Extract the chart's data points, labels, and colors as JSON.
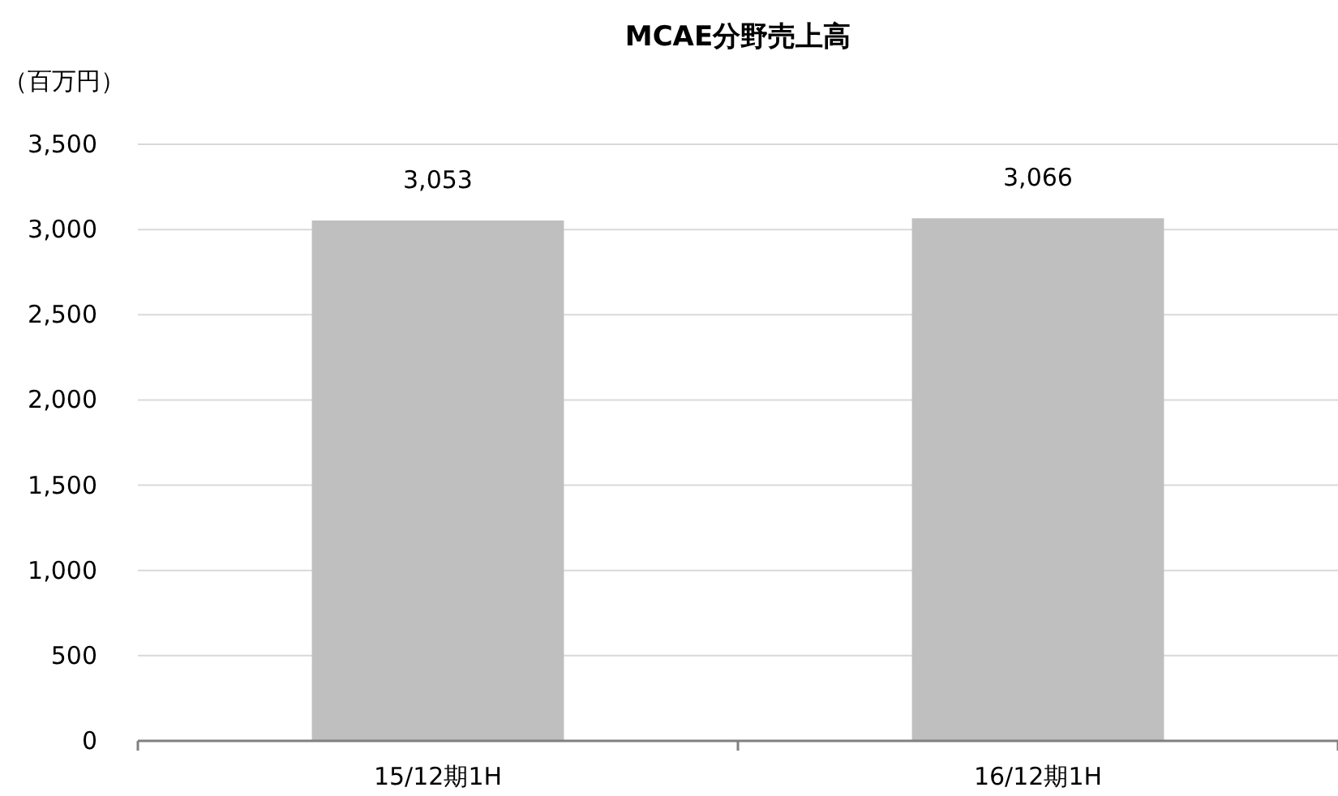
{
  "chart_data": {
    "type": "bar",
    "title": "MCAE分野売上高",
    "ylabel": "（百万円）",
    "categories": [
      "15/12期1H",
      "16/12期1H"
    ],
    "values": [
      3053,
      3066
    ],
    "color": "#bfbfbf",
    "ylim": [
      0,
      3500
    ],
    "yticks": [
      {
        "value": 0,
        "label": "0"
      },
      {
        "value": 500,
        "label": "500"
      },
      {
        "value": 1000,
        "label": "1,000"
      },
      {
        "value": 1500,
        "label": "1,500"
      },
      {
        "value": 2000,
        "label": "2,000"
      },
      {
        "value": 2500,
        "label": "2,500"
      },
      {
        "value": 3000,
        "label": "3,000"
      },
      {
        "value": 3500,
        "label": "3,500"
      }
    ],
    "value_labels": [
      "3,053",
      "3,066"
    ],
    "grid": "y"
  }
}
